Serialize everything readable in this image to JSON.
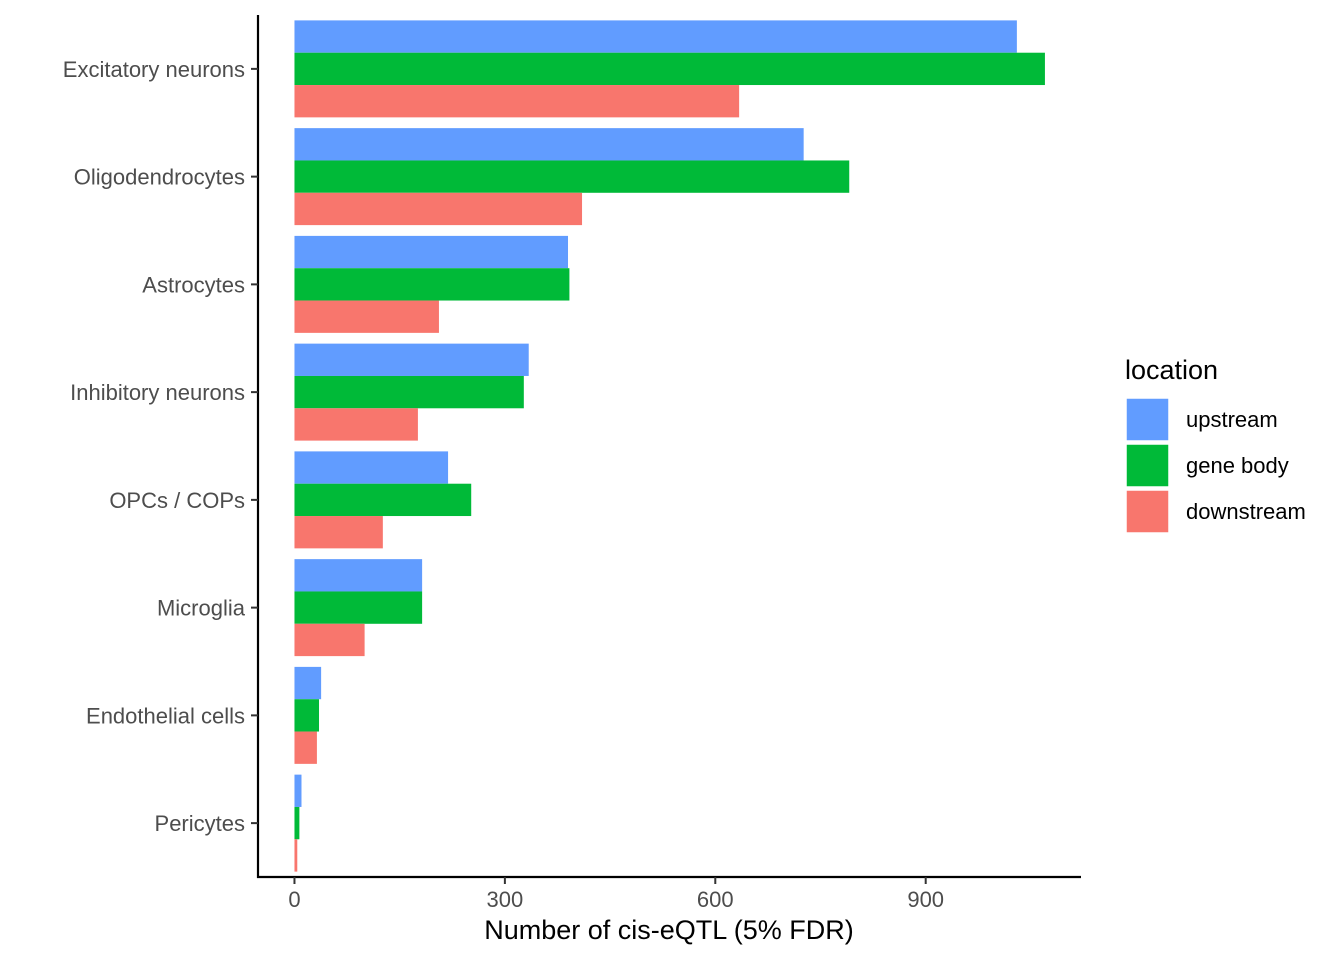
{
  "chart_data": {
    "type": "bar",
    "orientation": "horizontal",
    "categories": [
      "Excitatory neurons",
      "Oligodendrocytes",
      "Astrocytes",
      "Inhibitory neurons",
      "OPCs / COPs",
      "Microglia",
      "Endothelial cells",
      "Pericytes"
    ],
    "series": [
      {
        "name": "upstream",
        "color": "#619CFF",
        "values": [
          1030,
          726,
          390,
          334,
          219,
          182,
          38,
          10
        ]
      },
      {
        "name": "gene body",
        "color": "#00BA38",
        "values": [
          1070,
          791,
          392,
          327,
          252,
          182,
          35,
          7
        ]
      },
      {
        "name": "downstream",
        "color": "#F8766D",
        "values": [
          634,
          410,
          206,
          176,
          126,
          100,
          32,
          4
        ]
      }
    ],
    "xlabel": "Number of cis-eQTL (5% FDR)",
    "ylabel": "",
    "xlim": [
      -52,
      1120
    ],
    "xticks": [
      "0",
      "300",
      "600",
      "900"
    ],
    "xtick_values": [
      0,
      300,
      600,
      900
    ],
    "grid": false,
    "legend": {
      "title": "location",
      "placement": "right"
    }
  }
}
